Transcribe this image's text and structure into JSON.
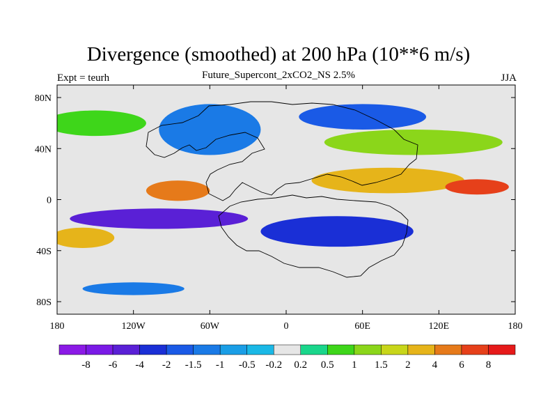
{
  "chart_data": {
    "type": "heatmap",
    "title": "Divergence (smoothed) at 200 hPa (10**6 m/s)",
    "subtitle": "Future_Supercont_2xCO2_NS 2.5%",
    "left_label": "Expt = teurh",
    "right_label": "JJA",
    "x_ticks": [
      "180",
      "120W",
      "60W",
      "0",
      "60E",
      "120E",
      "180"
    ],
    "y_ticks": [
      "80N",
      "40N",
      "0",
      "40S",
      "80S"
    ],
    "xlim": [
      -180,
      180
    ],
    "ylim": [
      -90,
      90
    ],
    "colorbar": {
      "labels": [
        "-8",
        "-6",
        "-4",
        "-2",
        "-1.5",
        "-1",
        "-0.5",
        "-0.2",
        "0.2",
        "0.5",
        "1",
        "1.5",
        "2",
        "4",
        "6",
        "8"
      ],
      "colors": [
        "#8b1ae6",
        "#7a1ae6",
        "#5a20d6",
        "#1a2fd6",
        "#1a5ae6",
        "#1a7ae6",
        "#1a9ee6",
        "#1ab8e6",
        "#e6e6e6",
        "#1ad68b",
        "#3ed61a",
        "#8bd61a",
        "#c8d61a",
        "#e6b41a",
        "#e67a1a",
        "#e6401a",
        "#e61a1a"
      ]
    },
    "regions": [
      {
        "type": "positive",
        "level": "0.5",
        "center": [
          -150,
          60
        ],
        "extent": [
          40,
          10
        ]
      },
      {
        "type": "negative",
        "level": "-1",
        "center": [
          -60,
          55
        ],
        "extent": [
          40,
          20
        ]
      },
      {
        "type": "negative",
        "level": "-1.5",
        "center": [
          60,
          65
        ],
        "extent": [
          50,
          10
        ]
      },
      {
        "type": "positive",
        "level": "1",
        "center": [
          100,
          45
        ],
        "extent": [
          70,
          10
        ]
      },
      {
        "type": "positive",
        "level": "4",
        "center": [
          -85,
          7
        ],
        "extent": [
          25,
          8
        ]
      },
      {
        "type": "positive",
        "level": "2",
        "center": [
          80,
          15
        ],
        "extent": [
          60,
          10
        ]
      },
      {
        "type": "positive",
        "level": "6",
        "center": [
          150,
          10
        ],
        "extent": [
          25,
          6
        ]
      },
      {
        "type": "negative",
        "level": "-4",
        "center": [
          -100,
          -15
        ],
        "extent": [
          70,
          8
        ]
      },
      {
        "type": "negative",
        "level": "-2",
        "center": [
          40,
          -25
        ],
        "extent": [
          60,
          12
        ]
      },
      {
        "type": "positive",
        "level": "2",
        "center": [
          -160,
          -30
        ],
        "extent": [
          25,
          8
        ]
      },
      {
        "type": "negative",
        "level": "-1",
        "center": [
          -120,
          -70
        ],
        "extent": [
          40,
          5
        ]
      }
    ]
  }
}
